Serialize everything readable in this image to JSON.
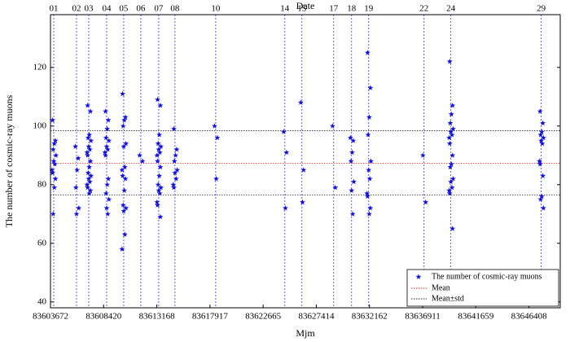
{
  "chart_data": {
    "type": "scatter",
    "title": "Date",
    "xlabel": "Mjm",
    "ylabel": "The number of cosmic-ray muons",
    "xlim": [
      83603672,
      83649200
    ],
    "xticks": [
      83603672,
      83608420,
      83613168,
      83617917,
      83622665,
      83627414,
      83632162,
      83636911,
      83641659,
      83646408
    ],
    "ylim": [
      38,
      138
    ],
    "yticks": [
      40,
      60,
      80,
      100,
      120
    ],
    "legend": "lower right",
    "date_lines": {
      "color": "#3333ff",
      "labels": [
        "01",
        "02",
        "03",
        "04",
        "05",
        "06",
        "07",
        "08",
        "10",
        "14",
        "15",
        "17",
        "18",
        "19",
        "22",
        "24",
        "29"
      ],
      "x": [
        83603963,
        83605998,
        83607088,
        83608687,
        83610213,
        83611739,
        83613338,
        83614792,
        83618426,
        83624604,
        83626130,
        83628965,
        83630564,
        83632090,
        83637032,
        83639431,
        83647498
      ]
    },
    "reference_lines": [
      {
        "name": "Mean",
        "color": "#e02020",
        "values": [
          87.3
        ]
      },
      {
        "name": "Mean±std",
        "color": "#222222",
        "values": [
          76.5,
          98.4
        ]
      }
    ],
    "series": [
      {
        "name": "The number of cosmic-ray muons",
        "color": "#1010e0",
        "x": [
          83603863,
          83604113,
          83604013,
          83603913,
          83604163,
          83603963,
          83604063,
          83603813,
          83603863,
          83604113,
          83604013,
          83603913,
          83605898,
          83606148,
          83606048,
          83605948,
          83606198,
          83605998,
          83606988,
          83607238,
          83607138,
          83607038,
          83607288,
          83607088,
          83607188,
          83606938,
          83606988,
          83607238,
          83607138,
          83607038,
          83607288,
          83607088,
          83607188,
          83606938,
          83606988,
          83607238,
          83607138,
          83608587,
          83608837,
          83608737,
          83608637,
          83608887,
          83608687,
          83608787,
          83608537,
          83608587,
          83608837,
          83608737,
          83608637,
          83608887,
          83608687,
          83608787,
          83610113,
          83610363,
          83610263,
          83610163,
          83610413,
          83610213,
          83610313,
          83610063,
          83610113,
          83610363,
          83610263,
          83610163,
          83610413,
          83610213,
          83610313,
          83610063,
          83611639,
          83611889,
          83613238,
          83613488,
          83613388,
          83613288,
          83613538,
          83613338,
          83613438,
          83613188,
          83613238,
          83613488,
          83613388,
          83613288,
          83613538,
          83613338,
          83613438,
          83613188,
          83613238,
          83613488,
          83614692,
          83614942,
          83614842,
          83614742,
          83614992,
          83614792,
          83614892,
          83614642,
          83614692,
          83618326,
          83618576,
          83618476,
          83624504,
          83624754,
          83624654,
          83626030,
          83626280,
          83626180,
          83628865,
          83629115,
          83630464,
          83630714,
          83630614,
          83630514,
          83630764,
          83630564,
          83630664,
          83631990,
          83632240,
          83632140,
          83632040,
          83632290,
          83632090,
          83632190,
          83631940,
          83631990,
          83632240,
          83632140,
          83636932,
          83637182,
          83639331,
          83639581,
          83639481,
          83639381,
          83639631,
          83639431,
          83639531,
          83639281,
          83639331,
          83639581,
          83639481,
          83639381,
          83639631,
          83639431,
          83639531,
          83639281,
          83639331,
          83639581,
          83647398,
          83647648,
          83647548,
          83647448,
          83647698,
          83647498,
          83647598,
          83647348,
          83647398,
          83647648,
          83647548,
          83647448,
          83647698
        ],
        "values": [
          102,
          95,
          94,
          92,
          90,
          88,
          87,
          85,
          84,
          82,
          79,
          70,
          93,
          89,
          85,
          79,
          72,
          70,
          107,
          105,
          97,
          96,
          95,
          93,
          92,
          91,
          90,
          88,
          86,
          84,
          83,
          82,
          81,
          80,
          79,
          78,
          77,
          105,
          102,
          99,
          96,
          95,
          93,
          92,
          91,
          90,
          82,
          80,
          77,
          75,
          72,
          70,
          111,
          103,
          102,
          100,
          94,
          93,
          86,
          85,
          83,
          82,
          78,
          73,
          72,
          71,
          63,
          58,
          90,
          88,
          109,
          107,
          97,
          94,
          93,
          92,
          91,
          90,
          88,
          86,
          83,
          80,
          79,
          78,
          77,
          74,
          73,
          69,
          99,
          92,
          90,
          88,
          85,
          84,
          82,
          80,
          79,
          100,
          96,
          82,
          98,
          91,
          72,
          108,
          85,
          74,
          100,
          79,
          96,
          95,
          91,
          88,
          81,
          78,
          70,
          125,
          113,
          103,
          97,
          88,
          85,
          82,
          77,
          76,
          72,
          70,
          90,
          74,
          122,
          107,
          104,
          101,
          99,
          98,
          97,
          96,
          94,
          90,
          87,
          86,
          82,
          81,
          79,
          78,
          77,
          65,
          105,
          101,
          98,
          97,
          96,
          95,
          94,
          88,
          87,
          83,
          76,
          75,
          72
        ]
      }
    ]
  }
}
